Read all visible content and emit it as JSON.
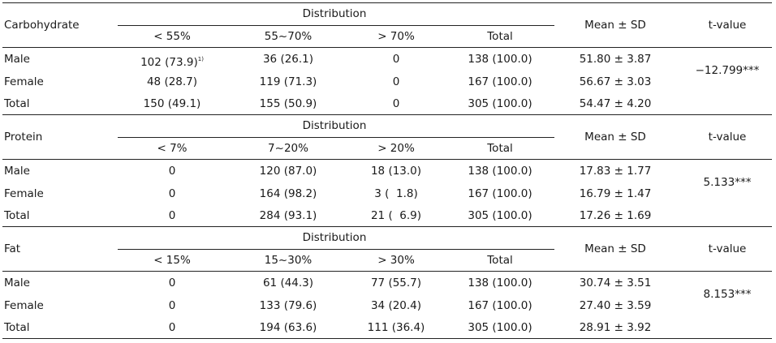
{
  "headers": {
    "distribution": "Distribution",
    "total": "Total",
    "mean_sd": "Mean ± SD",
    "t_value": "t-value"
  },
  "sections": [
    {
      "nutrient": "Carbohydrate",
      "ranges": [
        "< 55%",
        "55~70%",
        "> 70%"
      ],
      "rows": [
        {
          "group": "Male",
          "c1": "102 (73.9)",
          "c1_sup": "1)",
          "c2": "36 (26.1)",
          "c3": "0",
          "total": "138 (100.0)",
          "mean_sd": "51.80 ± 3.87"
        },
        {
          "group": "Female",
          "c1": "48 (28.7)",
          "c1_sup": "",
          "c2": "119 (71.3)",
          "c3": "0",
          "total": "167 (100.0)",
          "mean_sd": "56.67 ± 3.03"
        },
        {
          "group": "Total",
          "c1": "150 (49.1)",
          "c1_sup": "",
          "c2": "155 (50.9)",
          "c3": "0",
          "total": "305 (100.0)",
          "mean_sd": "54.47 ± 4.20"
        }
      ],
      "t_value": "−12.799***"
    },
    {
      "nutrient": "Protein",
      "ranges": [
        "< 7%",
        "7~20%",
        "> 20%"
      ],
      "rows": [
        {
          "group": "Male",
          "c1": "0",
          "c1_sup": "",
          "c2": "120 (87.0)",
          "c3": "18 (13.0)",
          "total": "138 (100.0)",
          "mean_sd": "17.83 ± 1.77"
        },
        {
          "group": "Female",
          "c1": "0",
          "c1_sup": "",
          "c2": "164 (98.2)",
          "c3": "3 (  1.8)",
          "total": "167 (100.0)",
          "mean_sd": "16.79 ± 1.47"
        },
        {
          "group": "Total",
          "c1": "0",
          "c1_sup": "",
          "c2": "284 (93.1)",
          "c3": "21 (  6.9)",
          "total": "305 (100.0)",
          "mean_sd": "17.26 ± 1.69"
        }
      ],
      "t_value": "5.133***"
    },
    {
      "nutrient": "Fat",
      "ranges": [
        "< 15%",
        "15~30%",
        "> 30%"
      ],
      "rows": [
        {
          "group": "Male",
          "c1": "0",
          "c1_sup": "",
          "c2": "61 (44.3)",
          "c3": "77 (55.7)",
          "total": "138 (100.0)",
          "mean_sd": "30.74 ± 3.51"
        },
        {
          "group": "Female",
          "c1": "0",
          "c1_sup": "",
          "c2": "133 (79.6)",
          "c3": "34 (20.4)",
          "total": "167 (100.0)",
          "mean_sd": "27.40 ± 3.59"
        },
        {
          "group": "Total",
          "c1": "0",
          "c1_sup": "",
          "c2": "194 (63.6)",
          "c3": "111 (36.4)",
          "total": "305 (100.0)",
          "mean_sd": "28.91 ± 3.92"
        }
      ],
      "t_value": "8.153***"
    }
  ]
}
